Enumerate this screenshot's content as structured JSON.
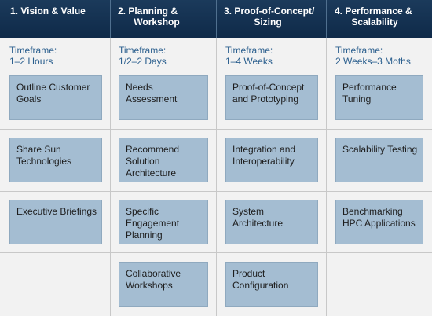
{
  "phases": [
    {
      "title": "1. Vision & Value",
      "title_line2": "",
      "timeframe_label": "Timeframe:",
      "timeframe": "1–2 Hours",
      "items": [
        "Outline Customer Goals",
        "Share Sun Technologies",
        "Executive Briefings"
      ]
    },
    {
      "title": "2. Planning &",
      "title_line2": "Workshop",
      "timeframe_label": "Timeframe:",
      "timeframe": "1/2–2 Days",
      "items": [
        "Needs Assessment",
        "Recommend Solution Architecture",
        "Specific Engagement Planning",
        "Collaborative Workshops"
      ]
    },
    {
      "title": "3. Proof-of-Concept/",
      "title_line2": "Sizing",
      "timeframe_label": "Timeframe:",
      "timeframe": "1–4 Weeks",
      "items": [
        "Proof-of-Concept and Prototyping",
        "Integration and Interoperability",
        "System Architecture",
        "Product Configuration"
      ]
    },
    {
      "title": "4. Performance &",
      "title_line2": "Scalability",
      "timeframe_label": "Timeframe:",
      "timeframe": "2 Weeks–3 Moths",
      "items": [
        "Performance Tuning",
        "Scalability Testing",
        "Benchmarking HPC Applications"
      ]
    }
  ]
}
